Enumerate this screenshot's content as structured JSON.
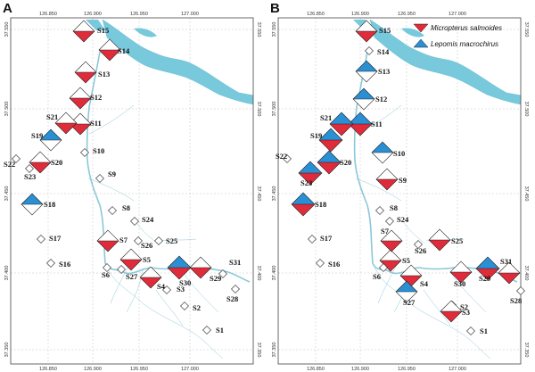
{
  "panels": [
    {
      "letter": "A",
      "sites": [
        {
          "id": "S1",
          "state": "empty"
        },
        {
          "id": "S2",
          "state": "empty"
        },
        {
          "id": "S3",
          "state": "empty"
        },
        {
          "id": "S4",
          "state": "red"
        },
        {
          "id": "S5",
          "state": "red"
        },
        {
          "id": "S6",
          "state": "empty"
        },
        {
          "id": "S7",
          "state": "red"
        },
        {
          "id": "S8",
          "state": "empty"
        },
        {
          "id": "S9",
          "state": "empty"
        },
        {
          "id": "S10",
          "state": "empty"
        },
        {
          "id": "S11",
          "state": "red"
        },
        {
          "id": "S12",
          "state": "red"
        },
        {
          "id": "S13",
          "state": "red"
        },
        {
          "id": "S14",
          "state": "red"
        },
        {
          "id": "S15",
          "state": "red"
        },
        {
          "id": "S16",
          "state": "empty"
        },
        {
          "id": "S17",
          "state": "empty"
        },
        {
          "id": "S18",
          "state": "blue"
        },
        {
          "id": "S19",
          "state": "blue"
        },
        {
          "id": "S20",
          "state": "red"
        },
        {
          "id": "S21",
          "state": "red"
        },
        {
          "id": "S22",
          "state": "empty"
        },
        {
          "id": "S23",
          "state": "empty"
        },
        {
          "id": "S24",
          "state": "empty"
        },
        {
          "id": "S25",
          "state": "empty"
        },
        {
          "id": "S26",
          "state": "empty"
        },
        {
          "id": "S27",
          "state": "empty"
        },
        {
          "id": "S28",
          "state": "empty"
        },
        {
          "id": "S29",
          "state": "red"
        },
        {
          "id": "S30",
          "state": "both"
        },
        {
          "id": "S31",
          "state": "empty"
        }
      ]
    },
    {
      "letter": "B",
      "legend": {
        "red_label": "Micropterus salmoides",
        "blue_label": "Lepomis macrochirus",
        "red_color": "#e02b3a",
        "blue_color": "#2a8fd3"
      },
      "sites": [
        {
          "id": "S1",
          "state": "empty"
        },
        {
          "id": "S2",
          "state": "empty"
        },
        {
          "id": "S3",
          "state": "red"
        },
        {
          "id": "S4",
          "state": "red"
        },
        {
          "id": "S5",
          "state": "red"
        },
        {
          "id": "S6",
          "state": "empty"
        },
        {
          "id": "S7",
          "state": "red"
        },
        {
          "id": "S8",
          "state": "empty"
        },
        {
          "id": "S9",
          "state": "red"
        },
        {
          "id": "S10",
          "state": "blue"
        },
        {
          "id": "S11",
          "state": "both"
        },
        {
          "id": "S12",
          "state": "blue"
        },
        {
          "id": "S13",
          "state": "blue"
        },
        {
          "id": "S14",
          "state": "empty"
        },
        {
          "id": "S15",
          "state": "red"
        },
        {
          "id": "S16",
          "state": "empty"
        },
        {
          "id": "S17",
          "state": "empty"
        },
        {
          "id": "S18",
          "state": "both"
        },
        {
          "id": "S19",
          "state": "both"
        },
        {
          "id": "S20",
          "state": "both"
        },
        {
          "id": "S21",
          "state": "both"
        },
        {
          "id": "S22",
          "state": "empty"
        },
        {
          "id": "S23",
          "state": "both"
        },
        {
          "id": "S24",
          "state": "empty"
        },
        {
          "id": "S25",
          "state": "red"
        },
        {
          "id": "S26",
          "state": "empty"
        },
        {
          "id": "S27",
          "state": "blue"
        },
        {
          "id": "S28",
          "state": "empty"
        },
        {
          "id": "S29",
          "state": "both"
        },
        {
          "id": "S30",
          "state": "red"
        },
        {
          "id": "S31",
          "state": "red"
        }
      ]
    }
  ],
  "axis": {
    "lon_ticks": [
      "126.850",
      "126.900",
      "126.950",
      "127.000"
    ],
    "lat_ticks": [
      "37.350",
      "37.400",
      "37.450",
      "37.500",
      "37.550"
    ]
  },
  "colors": {
    "river": "#78c9dc",
    "stream": "#8cc8d8",
    "frame": "#444444",
    "grid": "#b5b5b5"
  }
}
